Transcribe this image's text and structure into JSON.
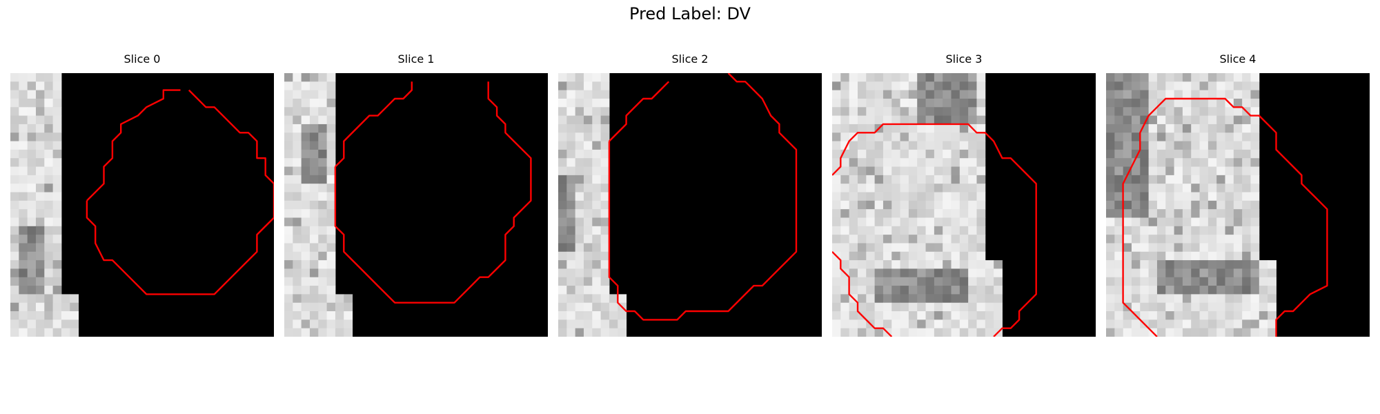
{
  "title": "Pred Label: DV",
  "colors": {
    "contour": "#ff0000",
    "background": "#000000"
  },
  "panels": [
    {
      "label": "Slice 0"
    },
    {
      "label": "Slice 1"
    },
    {
      "label": "Slice 2"
    },
    {
      "label": "Slice 3"
    },
    {
      "label": "Slice 4"
    }
  ]
}
